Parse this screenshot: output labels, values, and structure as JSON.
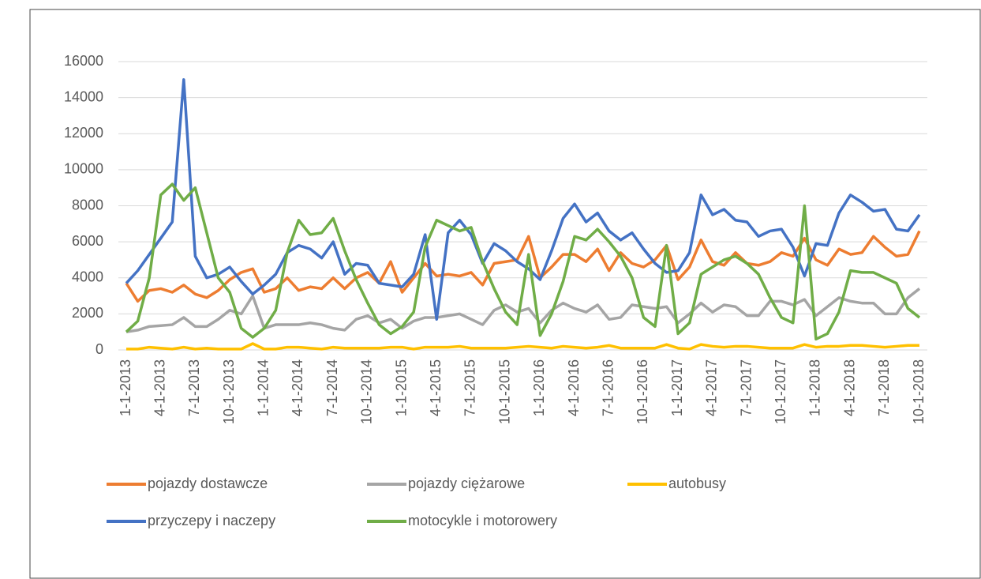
{
  "chart_data": {
    "type": "line",
    "categories": [
      "1-1-2013",
      null,
      null,
      "4-1-2013",
      null,
      null,
      "7-1-2013",
      null,
      null,
      "10-1-2013",
      null,
      null,
      "1-1-2014",
      null,
      null,
      "4-1-2014",
      null,
      null,
      "7-1-2014",
      null,
      null,
      "10-1-2014",
      null,
      null,
      "1-1-2015",
      null,
      null,
      "4-1-2015",
      null,
      null,
      "7-1-2015",
      null,
      null,
      "10-1-2015",
      null,
      null,
      "1-1-2016",
      null,
      null,
      "4-1-2016",
      null,
      null,
      "7-1-2016",
      null,
      null,
      "10-1-2016",
      null,
      null,
      "1-1-2017",
      null,
      null,
      "4-1-2017",
      null,
      null,
      "7-1-2017",
      null,
      null,
      "10-1-2017",
      null,
      null,
      "1-1-2018",
      null,
      null,
      "4-1-2018",
      null,
      null,
      "7-1-2018",
      null,
      null,
      "10-1-2018"
    ],
    "series": [
      {
        "name": "pojazdy dostawcze",
        "color": "#ed7d31",
        "values": [
          3700,
          2700,
          3300,
          3400,
          3200,
          3600,
          3100,
          2900,
          3300,
          3900,
          4300,
          4500,
          3200,
          3400,
          4000,
          3300,
          3500,
          3400,
          4000,
          3400,
          4000,
          4300,
          3700,
          4900,
          3200,
          4000,
          4800,
          4100,
          4200,
          4100,
          4300,
          3600,
          4800,
          4900,
          5000,
          6300,
          4000,
          4600,
          5300,
          5300,
          4900,
          5600,
          4400,
          5400,
          4800,
          4600,
          5000,
          5800,
          3900,
          4600,
          6100,
          4900,
          4700,
          5400,
          4800,
          4700,
          4900,
          5400,
          5200,
          6200,
          5000,
          4700,
          5600,
          5300,
          5400,
          6300,
          5700,
          5200,
          5300,
          6600
        ]
      },
      {
        "name": "pojazdy ciężarowe",
        "color": "#a5a5a5",
        "values": [
          1000,
          1100,
          1300,
          1350,
          1400,
          1800,
          1300,
          1300,
          1700,
          2200,
          2000,
          3000,
          1200,
          1400,
          1400,
          1400,
          1500,
          1400,
          1200,
          1100,
          1700,
          1900,
          1500,
          1700,
          1200,
          1600,
          1800,
          1800,
          1900,
          2000,
          1700,
          1400,
          2200,
          2500,
          2100,
          2300,
          1500,
          2200,
          2600,
          2300,
          2100,
          2500,
          1700,
          1800,
          2500,
          2400,
          2300,
          2400,
          1500,
          2000,
          2600,
          2100,
          2500,
          2400,
          1900,
          1900,
          2700,
          2700,
          2500,
          2800,
          1900,
          2400,
          2900,
          2700,
          2600,
          2600,
          2000,
          2000,
          2900,
          3400
        ]
      },
      {
        "name": "autobusy",
        "color": "#ffc000",
        "values": [
          50,
          50,
          150,
          100,
          50,
          150,
          50,
          100,
          50,
          50,
          50,
          350,
          50,
          50,
          150,
          150,
          100,
          50,
          150,
          100,
          100,
          100,
          100,
          150,
          150,
          50,
          150,
          150,
          150,
          200,
          100,
          100,
          100,
          100,
          150,
          200,
          150,
          100,
          200,
          150,
          100,
          150,
          250,
          100,
          100,
          100,
          100,
          300,
          100,
          50,
          300,
          200,
          150,
          200,
          200,
          150,
          100,
          100,
          100,
          300,
          150,
          200,
          200,
          250,
          250,
          200,
          150,
          200,
          250,
          250
        ]
      },
      {
        "name": "przyczepy i naczepy",
        "color": "#4472c4",
        "values": [
          3700,
          4400,
          5300,
          6200,
          7100,
          15000,
          5200,
          4000,
          4200,
          4600,
          3800,
          3100,
          3600,
          4200,
          5400,
          5800,
          5600,
          5100,
          6000,
          4200,
          4800,
          4700,
          3700,
          3600,
          3500,
          4200,
          6400,
          1700,
          6500,
          7200,
          6400,
          4800,
          5900,
          5500,
          4900,
          4500,
          3900,
          5500,
          7300,
          8100,
          7100,
          7600,
          6600,
          6100,
          6500,
          5600,
          4800,
          4300,
          4400,
          5400,
          8600,
          7500,
          7800,
          7200,
          7100,
          6300,
          6600,
          6700,
          5700,
          4100,
          5900,
          5800,
          7600,
          8600,
          8200,
          7700,
          7800,
          6700,
          6600,
          7500
        ]
      },
      {
        "name": "motocykle i motorowery",
        "color": "#70ad47",
        "values": [
          1000,
          1600,
          4000,
          8600,
          9200,
          8300,
          9000,
          6500,
          4000,
          3200,
          1200,
          700,
          1200,
          2200,
          5400,
          7200,
          6400,
          6500,
          7300,
          5500,
          3900,
          2600,
          1400,
          900,
          1300,
          2100,
          5700,
          7200,
          6900,
          6600,
          6800,
          4900,
          3400,
          2100,
          1400,
          5300,
          800,
          2000,
          3800,
          6300,
          6100,
          6700,
          6000,
          5200,
          4000,
          1800,
          1300,
          5800,
          900,
          1500,
          4200,
          4600,
          5000,
          5200,
          4800,
          4200,
          2900,
          1800,
          1500,
          8000,
          600,
          900,
          2100,
          4400,
          4300,
          4300,
          4000,
          3700,
          2300,
          1800
        ]
      }
    ],
    "ylim": [
      0,
      16000
    ],
    "yticks": [
      0,
      2000,
      4000,
      6000,
      8000,
      10000,
      12000,
      14000,
      16000
    ],
    "grid": true,
    "legend": "bottom"
  }
}
